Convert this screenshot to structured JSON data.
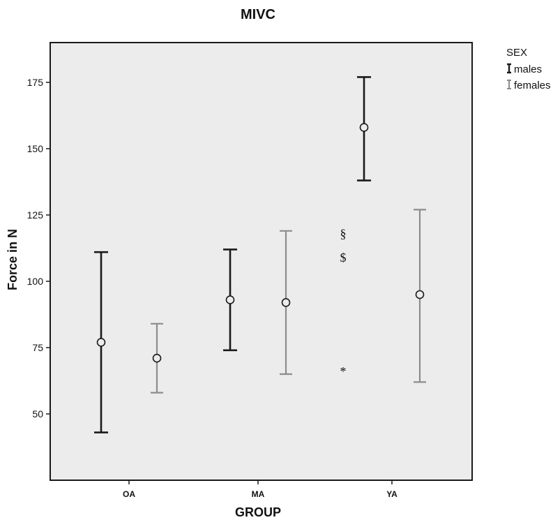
{
  "chart_data": {
    "type": "scatter",
    "title": "MIVC",
    "xlabel": "GROUP",
    "ylabel": "Force in N",
    "categories": [
      "OA",
      "MA",
      "YA"
    ],
    "ylim": [
      25,
      190
    ],
    "yticks": [
      "50",
      "75",
      "100",
      "125",
      "150",
      "175"
    ],
    "grid": false,
    "legend": {
      "title": "SEX",
      "placement": "outside-top-right",
      "entries": [
        "males",
        "females"
      ]
    },
    "series": [
      {
        "name": "males",
        "color": "#1a1a1a",
        "means": [
          77,
          93,
          158
        ],
        "lower": [
          43,
          74,
          138
        ],
        "upper": [
          111,
          112,
          177
        ]
      },
      {
        "name": "females",
        "color": "#8c8c8c",
        "means": [
          71,
          92,
          95
        ],
        "lower": [
          58,
          65,
          62
        ],
        "upper": [
          84,
          119,
          127
        ]
      }
    ],
    "annotations": [
      {
        "text": "§",
        "category": "YA",
        "y": 118
      },
      {
        "text": "$",
        "category": "YA",
        "y": 109
      },
      {
        "text": "*",
        "category": "YA",
        "y": 66
      }
    ],
    "colors": {
      "plot_background": "#ececec",
      "frame": "#1a1a1a"
    }
  }
}
